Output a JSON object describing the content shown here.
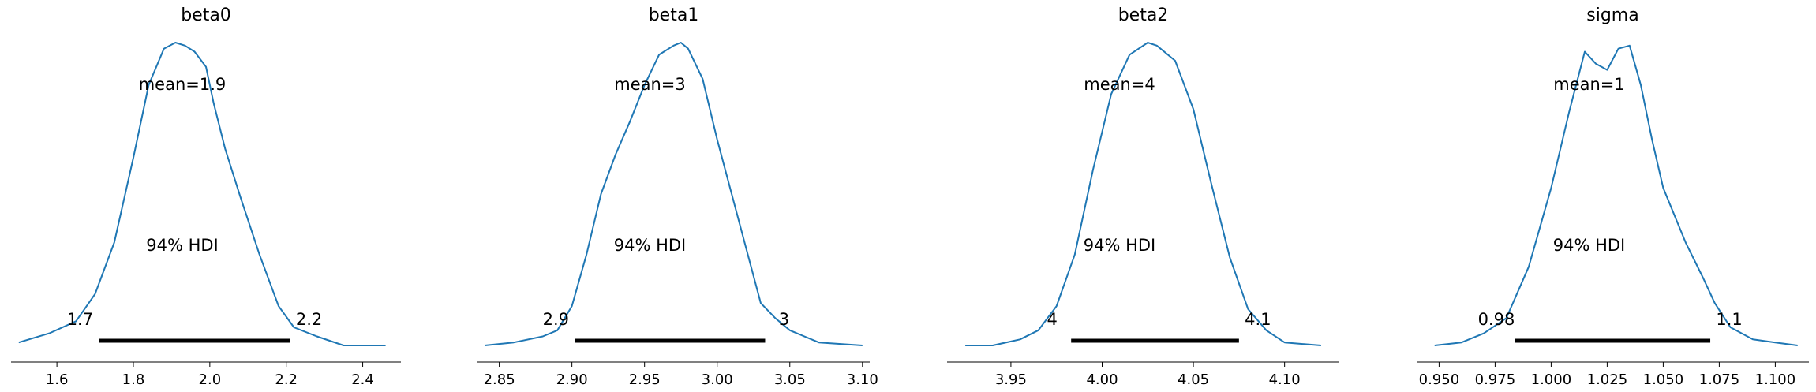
{
  "colors": {
    "density": "#1f77b4",
    "hdi_bar": "#000000"
  },
  "chart_data": [
    {
      "type": "area",
      "title": "beta0",
      "xlim": [
        1.48,
        2.5
      ],
      "xticks": [
        1.6,
        1.8,
        2.0,
        2.2,
        2.4
      ],
      "xtick_labels": [
        "1.6",
        "1.8",
        "2.0",
        "2.2",
        "2.4"
      ],
      "density_x": [
        1.5,
        1.58,
        1.65,
        1.7,
        1.75,
        1.8,
        1.84,
        1.88,
        1.91,
        1.935,
        1.96,
        1.99,
        2.01,
        2.04,
        2.08,
        2.13,
        2.18,
        2.22,
        2.28,
        2.35,
        2.42,
        2.46
      ],
      "density_y": [
        0.01,
        0.04,
        0.08,
        0.17,
        0.34,
        0.62,
        0.86,
        0.98,
        1.0,
        0.99,
        0.97,
        0.92,
        0.8,
        0.65,
        0.49,
        0.3,
        0.13,
        0.06,
        0.03,
        0.0,
        0.0,
        0.0
      ],
      "mean_label": "mean=1.9",
      "hdi_label": "94% HDI",
      "hdi": [
        1.71,
        2.21
      ],
      "hdi_low_label": "1.7",
      "hdi_high_label": "2.2"
    },
    {
      "type": "area",
      "title": "beta1",
      "xlim": [
        2.835,
        3.105
      ],
      "xticks": [
        2.85,
        2.9,
        2.95,
        3.0,
        3.05,
        3.1
      ],
      "xtick_labels": [
        "2.85",
        "2.90",
        "2.95",
        "3.00",
        "3.05",
        "3.10"
      ],
      "density_x": [
        2.84,
        2.86,
        2.88,
        2.89,
        2.9,
        2.91,
        2.92,
        2.93,
        2.94,
        2.95,
        2.96,
        2.97,
        2.975,
        2.98,
        2.99,
        3.0,
        3.01,
        3.02,
        3.03,
        3.04,
        3.05,
        3.07,
        3.1
      ],
      "density_y": [
        0.0,
        0.01,
        0.03,
        0.05,
        0.13,
        0.3,
        0.5,
        0.63,
        0.74,
        0.86,
        0.96,
        0.99,
        1.0,
        0.98,
        0.88,
        0.68,
        0.5,
        0.32,
        0.14,
        0.09,
        0.05,
        0.01,
        0.0
      ],
      "mean_label": "mean=3",
      "hdi_label": "94% HDI",
      "hdi": [
        2.902,
        3.033
      ],
      "hdi_low_label": "2.9",
      "hdi_high_label": "3"
    },
    {
      "type": "area",
      "title": "beta2",
      "xlim": [
        3.915,
        4.13
      ],
      "xticks": [
        3.95,
        4.0,
        4.05,
        4.1
      ],
      "xtick_labels": [
        "3.95",
        "4.00",
        "4.05",
        "4.10"
      ],
      "density_x": [
        3.925,
        3.94,
        3.955,
        3.965,
        3.975,
        3.985,
        3.995,
        4.005,
        4.015,
        4.025,
        4.03,
        4.04,
        4.05,
        4.06,
        4.07,
        4.08,
        4.09,
        4.1,
        4.12
      ],
      "density_y": [
        0.0,
        0.0,
        0.02,
        0.05,
        0.13,
        0.3,
        0.58,
        0.83,
        0.96,
        1.0,
        0.99,
        0.94,
        0.78,
        0.53,
        0.29,
        0.12,
        0.05,
        0.01,
        0.0
      ],
      "mean_label": "mean=4",
      "hdi_label": "94% HDI",
      "hdi": [
        3.983,
        4.075
      ],
      "hdi_low_label": "4",
      "hdi_high_label": "4.1"
    },
    {
      "type": "area",
      "title": "sigma",
      "xlim": [
        0.94,
        1.115
      ],
      "xticks": [
        0.95,
        0.975,
        1.0,
        1.025,
        1.05,
        1.075,
        1.1
      ],
      "xtick_labels": [
        "0.950",
        "0.975",
        "1.000",
        "1.025",
        "1.050",
        "1.075",
        "1.100"
      ],
      "density_x": [
        0.948,
        0.96,
        0.97,
        0.98,
        0.99,
        1.0,
        1.008,
        1.015,
        1.02,
        1.025,
        1.03,
        1.035,
        1.04,
        1.045,
        1.05,
        1.06,
        1.068,
        1.073,
        1.08,
        1.09,
        1.1,
        1.11
      ],
      "density_y": [
        0.0,
        0.01,
        0.04,
        0.09,
        0.26,
        0.52,
        0.77,
        0.97,
        0.93,
        0.91,
        0.98,
        0.99,
        0.86,
        0.68,
        0.52,
        0.34,
        0.22,
        0.14,
        0.06,
        0.02,
        0.01,
        0.0
      ],
      "mean_label": "mean=1",
      "hdi_label": "94% HDI",
      "hdi": [
        0.984,
        1.071
      ],
      "hdi_low_label": "0.98",
      "hdi_high_label": "1.1"
    }
  ]
}
